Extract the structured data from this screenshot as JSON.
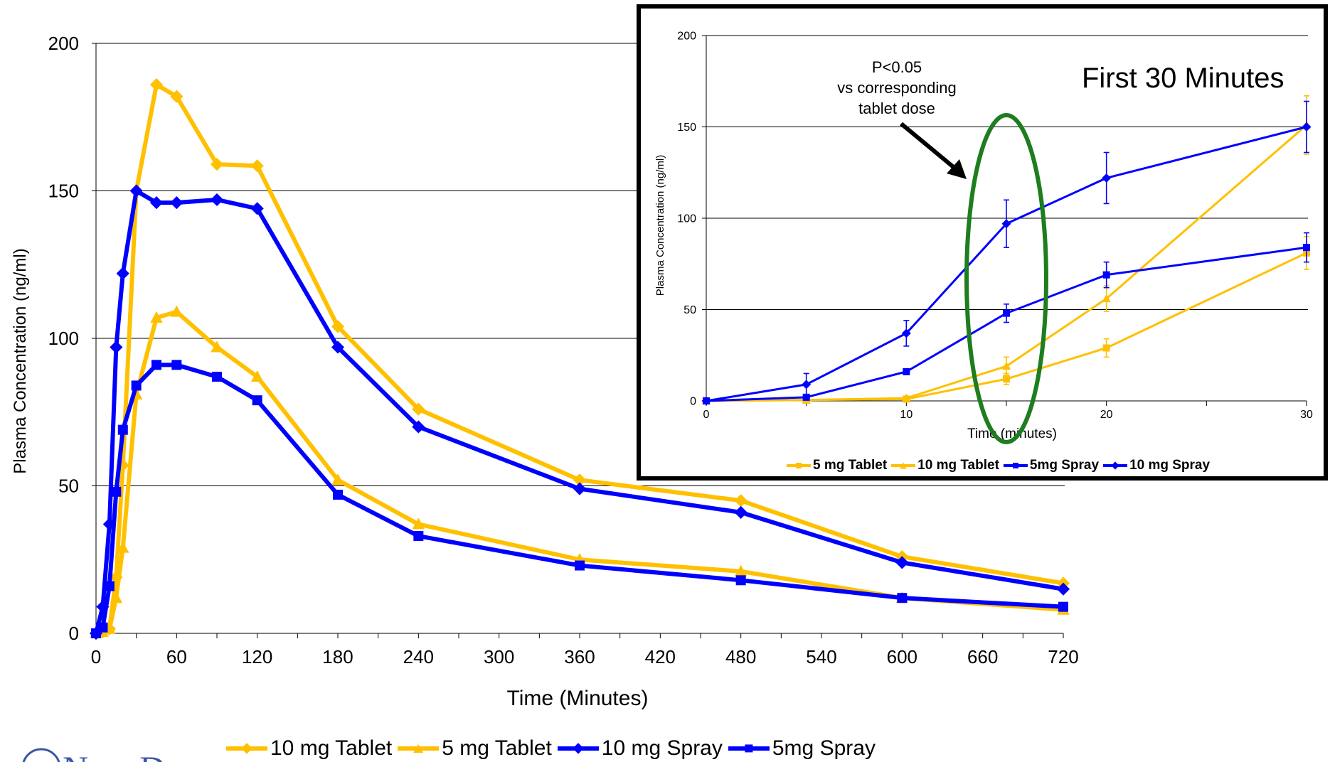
{
  "colors": {
    "tablet": "#FFC000",
    "spray": "#0000FF",
    "grid": "#000000",
    "ellipse": "#1E7D1E",
    "arrow": "#000000",
    "logo": "#3A55A8"
  },
  "logo": {
    "text": "NovaD",
    "icon": "circle-logo-icon"
  },
  "chart_data": [
    {
      "type": "line",
      "title": "",
      "xlabel": "Time (Minutes)",
      "ylabel": "Plasma Concentration (ng/ml)",
      "xlim": [
        0,
        720
      ],
      "ylim": [
        0,
        200
      ],
      "x_ticks": [
        0,
        60,
        120,
        180,
        240,
        300,
        360,
        420,
        480,
        540,
        600,
        660,
        720
      ],
      "y_ticks": [
        0,
        50,
        100,
        150,
        200
      ],
      "grid": "horizontal",
      "legend_position": "bottom",
      "series": [
        {
          "name": "10 mg Tablet",
          "color": "#FFC000",
          "marker": "diamond",
          "x": [
            0,
            5,
            10,
            15,
            20,
            30,
            45,
            60,
            90,
            120,
            180,
            240,
            360,
            480,
            600,
            720
          ],
          "y": [
            0,
            0.5,
            1.5,
            19,
            57,
            150,
            186,
            182,
            159,
            158.5,
            104,
            76,
            52,
            45,
            26,
            17
          ]
        },
        {
          "name": "5 mg Tablet",
          "color": "#FFC000",
          "marker": "triangle",
          "x": [
            0,
            5,
            10,
            15,
            20,
            30,
            45,
            60,
            90,
            120,
            180,
            240,
            360,
            480,
            600,
            720
          ],
          "y": [
            0,
            0.5,
            1.5,
            12,
            29,
            81,
            107,
            109,
            97,
            87,
            52,
            37,
            25,
            21,
            12,
            8
          ]
        },
        {
          "name": "10 mg Spray",
          "color": "#0000FF",
          "marker": "diamond",
          "x": [
            0,
            5,
            10,
            15,
            20,
            30,
            45,
            60,
            90,
            120,
            180,
            240,
            360,
            480,
            600,
            720
          ],
          "y": [
            0,
            9,
            37,
            97,
            122,
            150,
            146,
            146,
            147,
            144,
            97,
            70,
            49,
            41,
            24,
            15
          ]
        },
        {
          "name": "5mg Spray",
          "color": "#0000FF",
          "marker": "square",
          "x": [
            0,
            5,
            10,
            15,
            20,
            30,
            45,
            60,
            90,
            120,
            180,
            240,
            360,
            480,
            600,
            720
          ],
          "y": [
            0,
            2,
            16,
            48,
            69,
            84,
            91,
            91,
            87,
            79,
            47,
            33,
            23,
            18,
            12,
            9
          ]
        }
      ]
    },
    {
      "type": "line",
      "title": "First 30 Minutes",
      "xlabel": "Time (minutes)",
      "ylabel": "Plasma Concentration (ng/ml)",
      "xlim": [
        0,
        30
      ],
      "ylim": [
        0,
        200
      ],
      "x_ticks": [
        0,
        10,
        20,
        30
      ],
      "y_ticks": [
        0,
        50,
        100,
        150,
        200
      ],
      "grid": "horizontal",
      "legend_position": "bottom",
      "annotation": [
        "P<0.05",
        "vs corresponding",
        "tablet dose"
      ],
      "highlight_x": 15,
      "series": [
        {
          "name": "5 mg Tablet",
          "color": "#FFC000",
          "marker": "square",
          "x": [
            0,
            5,
            10,
            15,
            20,
            30
          ],
          "y": [
            0,
            0.5,
            1,
            12,
            29,
            81
          ],
          "err": [
            0,
            0,
            0,
            3,
            5,
            9
          ]
        },
        {
          "name": "10 mg Tablet",
          "color": "#FFC000",
          "marker": "triangle",
          "x": [
            0,
            5,
            10,
            15,
            20,
            30
          ],
          "y": [
            0,
            0.5,
            1.5,
            19,
            56,
            151
          ],
          "err": [
            0,
            0,
            0,
            5,
            7,
            16
          ]
        },
        {
          "name": "5mg Spray",
          "color": "#0000FF",
          "marker": "square",
          "x": [
            0,
            5,
            10,
            15,
            20,
            30
          ],
          "y": [
            0,
            2,
            16,
            48,
            69,
            84
          ],
          "err": [
            0,
            0,
            0,
            5,
            7,
            8
          ]
        },
        {
          "name": "10 mg Spray",
          "color": "#0000FF",
          "marker": "diamond",
          "x": [
            0,
            5,
            10,
            15,
            20,
            30
          ],
          "y": [
            0,
            9,
            37,
            97,
            122,
            150
          ],
          "err": [
            0,
            6,
            7,
            13,
            14,
            14
          ]
        }
      ]
    }
  ]
}
